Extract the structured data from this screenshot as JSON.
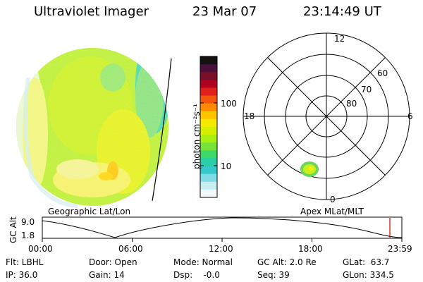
{
  "header": {
    "instrument": "Ultraviolet Imager",
    "date": "23 Mar 07",
    "time": "23:14:49 UT"
  },
  "left_panel": {
    "projection_label": "Geographic Lat/Lon"
  },
  "colorbar": {
    "unit_label": "photon cm⁻²s⁻¹",
    "tick_labels": [
      "100",
      "10"
    ],
    "colors": [
      "#111111",
      "#4b0f3c",
      "#7a0f2a",
      "#b00020",
      "#e0201a",
      "#f5560e",
      "#ff8a00",
      "#ffc400",
      "#f5ea00",
      "#d4f000",
      "#a8ee10",
      "#77e23a",
      "#3fd86a",
      "#28cfa8",
      "#36c9cc",
      "#7fdbe6",
      "#c8eef2",
      "#f2f9fa"
    ]
  },
  "right_panel": {
    "projection_label": "Apex MLat/MLT",
    "mlt_labels": {
      "top": "12",
      "left": "18",
      "right": "6",
      "bottom": "0"
    },
    "mlat_labels": [
      "60",
      "70",
      "80"
    ]
  },
  "timeline": {
    "axis_label": "GC Alt",
    "y_ticks": [
      "9.0",
      "1.8"
    ],
    "x_ticks": [
      "00:00",
      "06:00",
      "12:00",
      "18:00",
      "23:59"
    ],
    "current_time_marker_color": "#cc0000"
  },
  "status": {
    "filter": "Flt: LBHL",
    "ip": "IP: 36.0",
    "door": "Door: Open",
    "gain": "Gain: 14",
    "mode": "Mode: Normal",
    "dsp": "Dsp:    -0.0",
    "gc_alt": "GC Alt: 2.0 Re",
    "seq": "Seq: 39",
    "glat": "GLat:  63.7",
    "glon": "GLon: 334.5"
  }
}
